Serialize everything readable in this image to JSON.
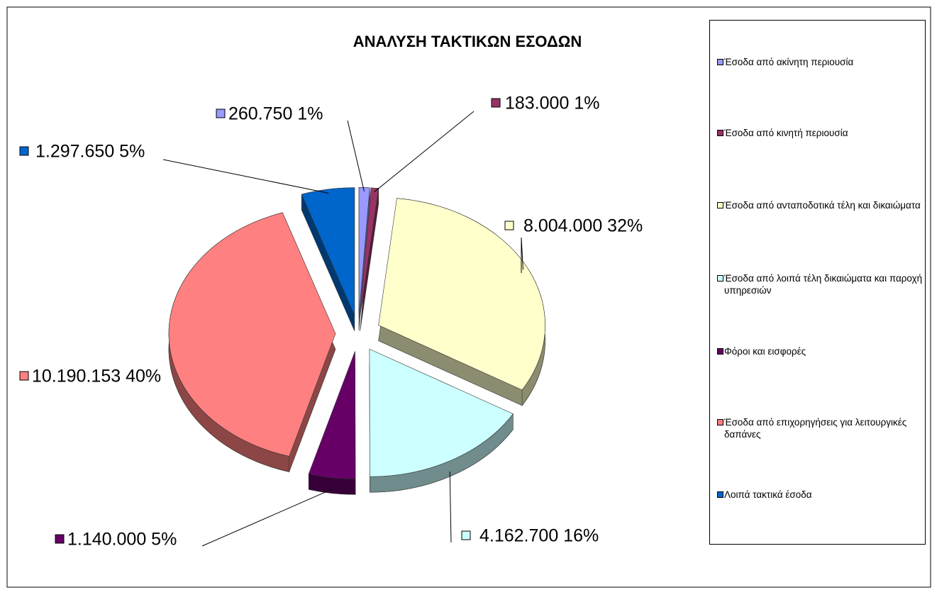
{
  "chart_data": {
    "type": "pie",
    "title": "ΑΝΑΛΥΣΗ ΤΑΚΤΙΚΩΝ ΕΣΟΔΩΝ",
    "categories": [
      "Έσοδα από ακίνητη περιουσία",
      "Έσοδα από κινητή περιουσία",
      "Έσοδα από ανταποδοτικά τέλη και δικαιώματα",
      "Έσοδα από λοιπά τέλη δικαιώματα και παροχή υπηρεσιών",
      "Φόροι και εισφορές",
      "Έσοδα από επιχορηγήσεις για λειτουργικές δαπάνες",
      "Λοιπά τακτικά έσοδα"
    ],
    "values": [
      260750,
      183000,
      8004000,
      4162700,
      1140000,
      10190153,
      1297650
    ],
    "value_labels": [
      "260.750 1%",
      "183.000 1%",
      "8.004.000 32%",
      "4.162.700 16%",
      "1.140.000 5%",
      "10.190.153 40%",
      "1.297.650 5%"
    ],
    "colors": [
      "#9999ff",
      "#993366",
      "#ffffcc",
      "#ccffff",
      "#660066",
      "#ff8080",
      "#0066cc"
    ],
    "legend": "right"
  }
}
